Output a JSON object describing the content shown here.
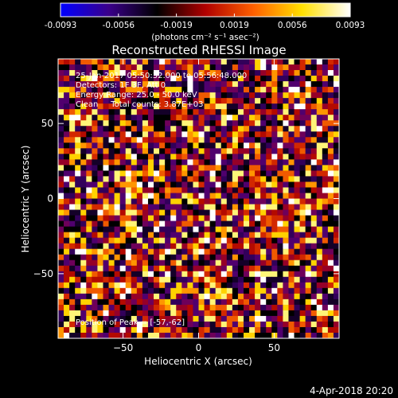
{
  "chart_data": {
    "type": "heatmap",
    "title": "Reconstructed RHESSI Image",
    "xlabel": "Heliocentric X (arcsec)",
    "ylabel": "Heliocentric Y (arcsec)",
    "xlim": [
      -93,
      93
    ],
    "ylim": [
      -93,
      93
    ],
    "x_ticks": [
      -50,
      0,
      50
    ],
    "y_ticks": [
      -50,
      0,
      50
    ],
    "colorbar": {
      "range": [
        -0.0093,
        0.0093
      ],
      "ticks": [
        "-0.0093",
        "-0.0056",
        "-0.0019",
        "0.0019",
        "0.0056",
        "0.0093"
      ],
      "units": "(photons cm⁻² s⁻¹ asec⁻²)",
      "colors": [
        "#0000ff",
        "#3a008a",
        "#000000",
        "#b00000",
        "#ff6000",
        "#ffe000",
        "#ffffff"
      ]
    },
    "annotations": [
      "25-Jan-2017 05:50:32.000 to 05:56:48.000",
      "Detectors: 1F 3F, Att 0",
      "Energy Range: 25.0 - 50.0 keV",
      "Clean     Total counts: 3.87E+03"
    ],
    "peak_label": "Position of Peak = [-57,-62]",
    "grid": false
  },
  "footer": {
    "date": "4-Apr-2018 20:20"
  }
}
